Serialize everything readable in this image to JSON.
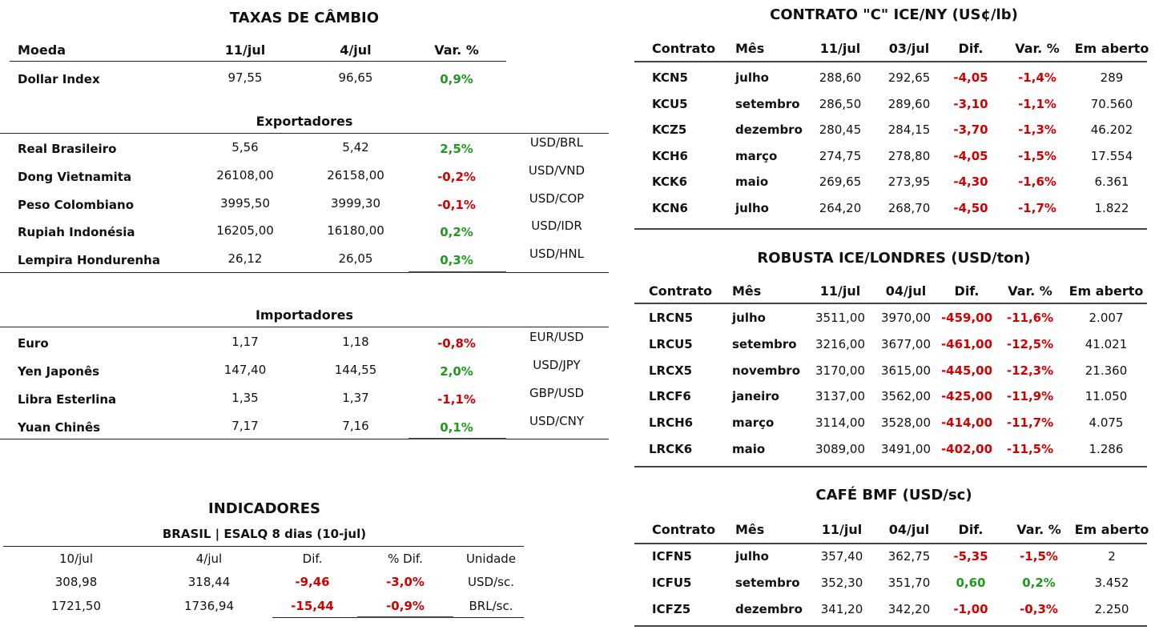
{
  "colors": {
    "positive": "#1f9a1f",
    "negative": "#d40000"
  },
  "cambio": {
    "title": "TAXAS DE CÂMBIO",
    "headers": [
      "Moeda",
      "11/jul",
      "4/jul",
      "Var. %"
    ],
    "dollar_index": {
      "name": "Dollar Index",
      "v1": "97,55",
      "v2": "96,65",
      "var": "0,9%",
      "dir": "pos"
    },
    "exportadores_title": "Exportadores",
    "exportadores": [
      {
        "name": "Real Brasileiro",
        "v1": "5,56",
        "v2": "5,42",
        "var": "2,5%",
        "dir": "pos",
        "pair": "USD/BRL"
      },
      {
        "name": "Dong Vietnamita",
        "v1": "26108,00",
        "v2": "26158,00",
        "var": "-0,2%",
        "dir": "neg",
        "pair": "USD/VND"
      },
      {
        "name": "Peso Colombiano",
        "v1": "3995,50",
        "v2": "3999,30",
        "var": "-0,1%",
        "dir": "neg",
        "pair": "USD/COP"
      },
      {
        "name": "Rupiah Indonésia",
        "v1": "16205,00",
        "v2": "16180,00",
        "var": "0,2%",
        "dir": "pos",
        "pair": "USD/IDR"
      },
      {
        "name": "Lempira Hondurenha",
        "v1": "26,12",
        "v2": "26,05",
        "var": "0,3%",
        "dir": "pos",
        "pair": "USD/HNL"
      }
    ],
    "importadores_title": "Importadores",
    "importadores": [
      {
        "name": "Euro",
        "v1": "1,17",
        "v2": "1,18",
        "var": "-0,8%",
        "dir": "neg",
        "pair": "EUR/USD"
      },
      {
        "name": "Yen Japonês",
        "v1": "147,40",
        "v2": "144,55",
        "var": "2,0%",
        "dir": "pos",
        "pair": "USD/JPY"
      },
      {
        "name": "Libra Esterlina",
        "v1": "1,35",
        "v2": "1,37",
        "var": "-1,1%",
        "dir": "neg",
        "pair": "GBP/USD"
      },
      {
        "name": "Yuan Chinês",
        "v1": "7,17",
        "v2": "7,16",
        "var": "0,1%",
        "dir": "pos",
        "pair": "USD/CNY"
      }
    ]
  },
  "indicadores": {
    "title": "INDICADORES",
    "subtitle": "BRASIL | ESALQ 8 dias (10-jul)",
    "headers": [
      "10/jul",
      "4/jul",
      "Dif.",
      "% Dif.",
      "Unidade"
    ],
    "rows": [
      {
        "v1": "308,98",
        "v2": "318,44",
        "dif": "-9,46",
        "pct": "-3,0%",
        "unit": "USD/sc.",
        "dir": "neg"
      },
      {
        "v1": "1721,50",
        "v2": "1736,94",
        "dif": "-15,44",
        "pct": "-0,9%",
        "unit": "BRL/sc.",
        "dir": "neg"
      }
    ]
  },
  "ice_ny": {
    "title": "CONTRATO \"C\" ICE/NY (US¢/lb)",
    "headers": [
      "Contrato",
      "Mês",
      "11/jul",
      "03/jul",
      "Dif.",
      "Var. %",
      "Em aberto"
    ],
    "rows": [
      {
        "c": "KCN5",
        "m": "julho",
        "v1": "288,60",
        "v2": "292,65",
        "dif": "-4,05",
        "var": "-1,4%",
        "oi": "289",
        "dir": "neg"
      },
      {
        "c": "KCU5",
        "m": "setembro",
        "v1": "286,50",
        "v2": "289,60",
        "dif": "-3,10",
        "var": "-1,1%",
        "oi": "70.560",
        "dir": "neg"
      },
      {
        "c": "KCZ5",
        "m": "dezembro",
        "v1": "280,45",
        "v2": "284,15",
        "dif": "-3,70",
        "var": "-1,3%",
        "oi": "46.202",
        "dir": "neg"
      },
      {
        "c": "KCH6",
        "m": "março",
        "v1": "274,75",
        "v2": "278,80",
        "dif": "-4,05",
        "var": "-1,5%",
        "oi": "17.554",
        "dir": "neg"
      },
      {
        "c": "KCK6",
        "m": "maio",
        "v1": "269,65",
        "v2": "273,95",
        "dif": "-4,30",
        "var": "-1,6%",
        "oi": "6.361",
        "dir": "neg"
      },
      {
        "c": "KCN6",
        "m": "julho",
        "v1": "264,20",
        "v2": "268,70",
        "dif": "-4,50",
        "var": "-1,7%",
        "oi": "1.822",
        "dir": "neg"
      }
    ]
  },
  "robusta": {
    "title": "ROBUSTA ICE/LONDRES (USD/ton)",
    "headers": [
      "Contrato",
      "Mês",
      "11/jul",
      "04/jul",
      "Dif.",
      "Var. %",
      "Em aberto"
    ],
    "rows": [
      {
        "c": "LRCN5",
        "m": "julho",
        "v1": "3511,00",
        "v2": "3970,00",
        "dif": "-459,00",
        "var": "-11,6%",
        "oi": "2.007",
        "dir": "neg"
      },
      {
        "c": "LRCU5",
        "m": "setembro",
        "v1": "3216,00",
        "v2": "3677,00",
        "dif": "-461,00",
        "var": "-12,5%",
        "oi": "41.021",
        "dir": "neg"
      },
      {
        "c": "LRCX5",
        "m": "novembro",
        "v1": "3170,00",
        "v2": "3615,00",
        "dif": "-445,00",
        "var": "-12,3%",
        "oi": "21.360",
        "dir": "neg"
      },
      {
        "c": "LRCF6",
        "m": "janeiro",
        "v1": "3137,00",
        "v2": "3562,00",
        "dif": "-425,00",
        "var": "-11,9%",
        "oi": "11.050",
        "dir": "neg"
      },
      {
        "c": "LRCH6",
        "m": "março",
        "v1": "3114,00",
        "v2": "3528,00",
        "dif": "-414,00",
        "var": "-11,7%",
        "oi": "4.075",
        "dir": "neg"
      },
      {
        "c": "LRCK6",
        "m": "maio",
        "v1": "3089,00",
        "v2": "3491,00",
        "dif": "-402,00",
        "var": "-11,5%",
        "oi": "1.286",
        "dir": "neg"
      }
    ]
  },
  "bmf": {
    "title": "CAFÉ BMF (USD/sc)",
    "headers": [
      "Contrato",
      "Mês",
      "11/jul",
      "04/jul",
      "Dif.",
      "Var. %",
      "Em aberto"
    ],
    "rows": [
      {
        "c": "ICFN5",
        "m": "julho",
        "v1": "357,40",
        "v2": "362,75",
        "dif": "-5,35",
        "var": "-1,5%",
        "oi": "2",
        "dir": "neg"
      },
      {
        "c": "ICFU5",
        "m": "setembro",
        "v1": "352,30",
        "v2": "351,70",
        "dif": "0,60",
        "var": "0,2%",
        "oi": "3.452",
        "dir": "pos"
      },
      {
        "c": "ICFZ5",
        "m": "dezembro",
        "v1": "341,20",
        "v2": "342,20",
        "dif": "-1,00",
        "var": "-0,3%",
        "oi": "2.250",
        "dir": "neg"
      }
    ]
  }
}
